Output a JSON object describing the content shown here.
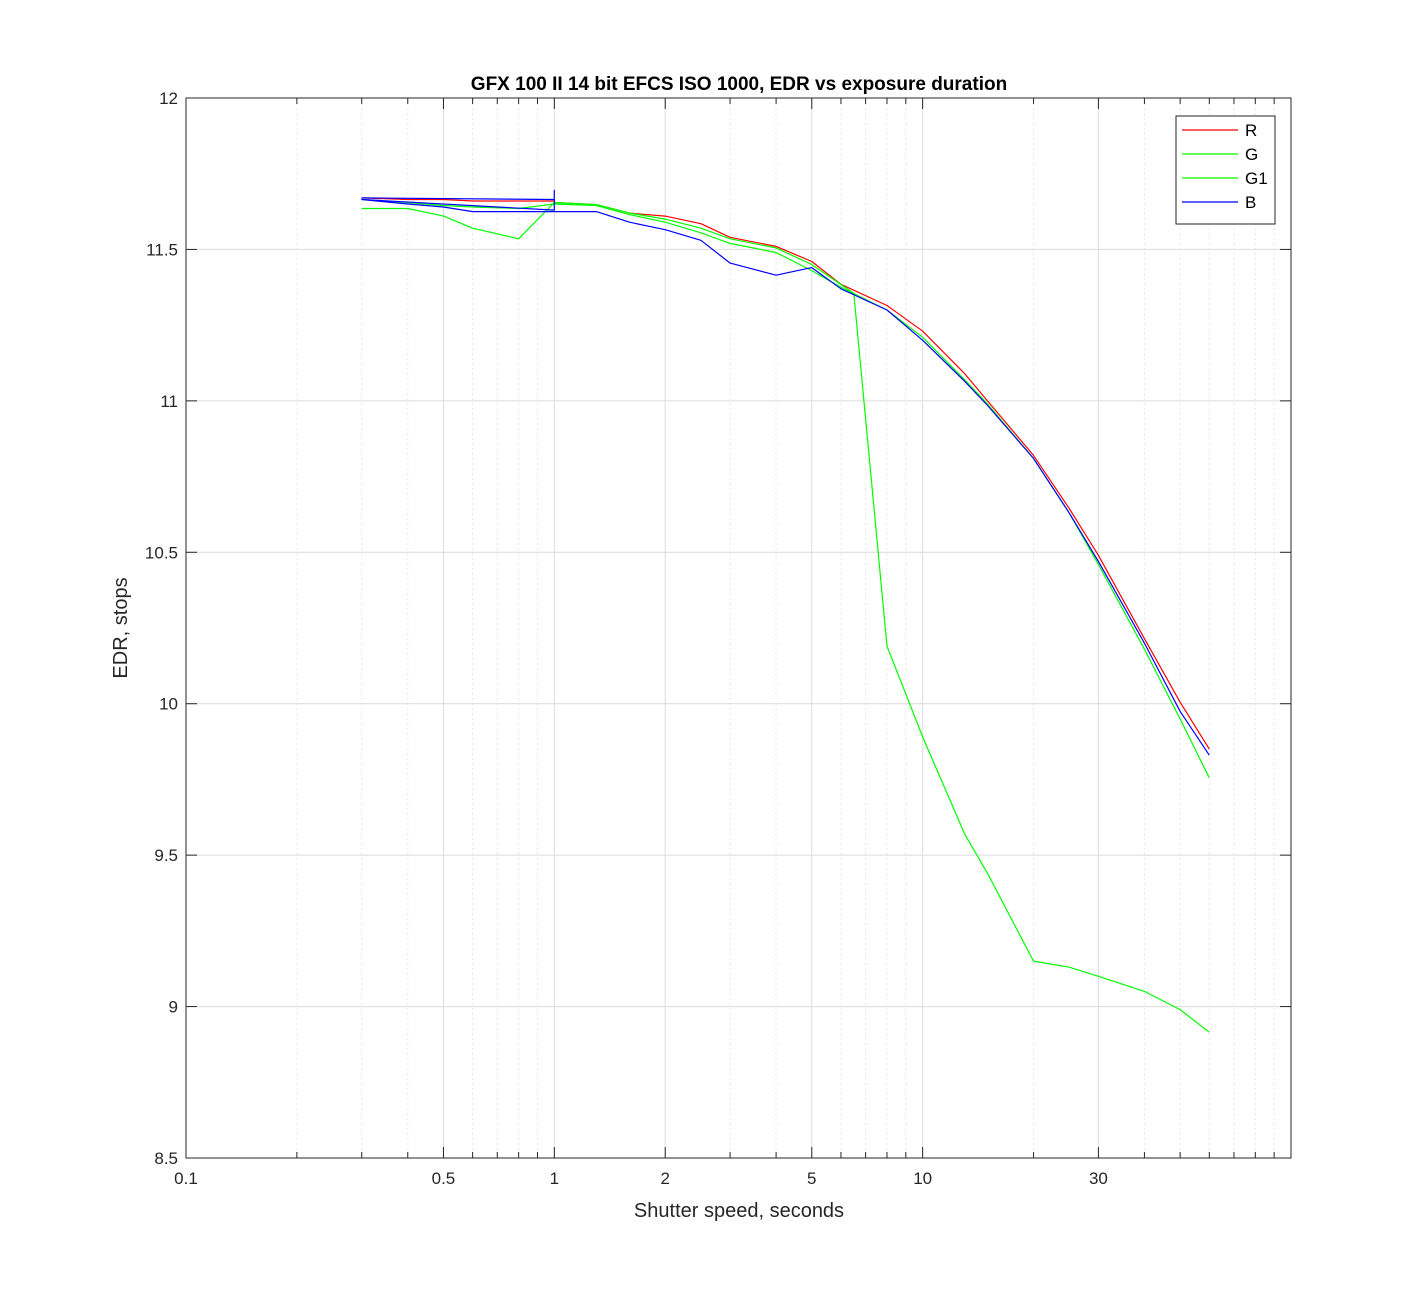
{
  "chart_data": {
    "type": "line",
    "title": "GFX 100 II 14 bit EFCS ISO 1000, EDR vs exposure duration",
    "xlabel": "Shutter speed, seconds",
    "ylabel": "EDR, stops",
    "xscale": "log",
    "xlim": [
      0.1,
      100
    ],
    "ylim": [
      8.5,
      12
    ],
    "xticks": [
      0.1,
      0.5,
      1,
      2,
      5,
      10,
      30
    ],
    "xtick_labels": [
      "0.1",
      "0.5",
      "1",
      "2",
      "5",
      "10",
      "30"
    ],
    "yticks": [
      8.5,
      9,
      9.5,
      10,
      10.5,
      11,
      11.5,
      12
    ],
    "ytick_labels": [
      "8.5",
      "9",
      "9.5",
      "10",
      "10.5",
      "11",
      "11.5",
      "12"
    ],
    "grid": true,
    "legend_position": "top-right",
    "series": [
      {
        "name": "R",
        "color": "#ff0000",
        "x": [
          0.3,
          0.4,
          0.5,
          0.6,
          0.8,
          1,
          1,
          1.3,
          1.6,
          2,
          2.5,
          3,
          4,
          5,
          6,
          8,
          10,
          13,
          15,
          20,
          25,
          30,
          40,
          50,
          60
        ],
        "y": [
          11.67,
          11.665,
          11.665,
          11.66,
          11.66,
          11.66,
          11.655,
          11.648,
          11.62,
          11.61,
          11.585,
          11.54,
          11.51,
          11.46,
          11.385,
          11.315,
          11.23,
          11.09,
          11.0,
          10.82,
          10.645,
          10.49,
          10.215,
          10.005,
          9.85
        ]
      },
      {
        "name": "G",
        "color": "#00ff00",
        "x": [
          0.3,
          0.4,
          0.5,
          0.6,
          0.8,
          1,
          1.3,
          1.6,
          2,
          2.5,
          3,
          4,
          5,
          6.5,
          8,
          10,
          13,
          15,
          20,
          25,
          30,
          40,
          50,
          60
        ],
        "y": [
          11.635,
          11.635,
          11.61,
          11.57,
          11.535,
          11.655,
          11.648,
          11.62,
          11.6,
          11.57,
          11.535,
          11.505,
          11.45,
          11.355,
          10.19,
          9.89,
          9.57,
          9.44,
          9.15,
          9.13,
          9.1,
          9.05,
          8.99,
          8.915
        ]
      },
      {
        "name": "G1",
        "color": "#00ff00",
        "x": [
          0.3,
          0.4,
          0.5,
          0.6,
          0.8,
          1,
          1.3,
          1.6,
          2,
          2.5,
          3,
          4,
          5,
          6,
          8,
          10,
          13,
          15,
          20,
          25,
          30,
          40,
          50,
          60
        ],
        "y": [
          11.665,
          11.655,
          11.645,
          11.64,
          11.635,
          11.65,
          11.645,
          11.615,
          11.59,
          11.555,
          11.52,
          11.49,
          11.43,
          11.375,
          11.3,
          11.21,
          11.07,
          10.99,
          10.81,
          10.63,
          10.46,
          10.18,
          9.95,
          9.755
        ]
      },
      {
        "name": "B",
        "color": "#0000ff",
        "x": [
          0.3,
          1,
          1,
          1,
          0.3,
          0.4,
          0.5,
          0.6,
          0.8,
          1,
          1.3,
          1.6,
          2,
          2.5,
          3,
          4,
          5,
          6,
          8,
          10,
          13,
          15,
          20,
          25,
          30,
          40,
          50,
          60
        ],
        "y": [
          11.67,
          11.665,
          11.695,
          11.63,
          11.665,
          11.65,
          11.64,
          11.625,
          11.625,
          11.625,
          11.625,
          11.59,
          11.565,
          11.53,
          11.455,
          11.415,
          11.44,
          11.37,
          11.3,
          11.2,
          11.065,
          10.985,
          10.81,
          10.63,
          10.47,
          10.2,
          9.975,
          9.83
        ]
      }
    ]
  }
}
